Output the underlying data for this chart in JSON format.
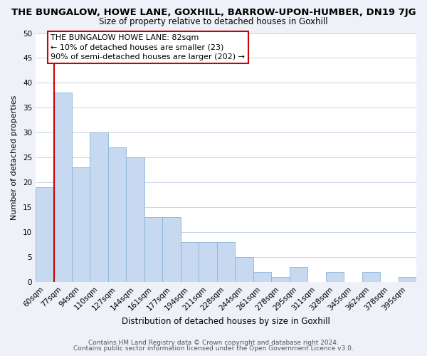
{
  "title": "THE BUNGALOW, HOWE LANE, GOXHILL, BARROW-UPON-HUMBER, DN19 7JG",
  "subtitle": "Size of property relative to detached houses in Goxhill",
  "xlabel": "Distribution of detached houses by size in Goxhill",
  "ylabel": "Number of detached properties",
  "bin_labels": [
    "60sqm",
    "77sqm",
    "94sqm",
    "110sqm",
    "127sqm",
    "144sqm",
    "161sqm",
    "177sqm",
    "194sqm",
    "211sqm",
    "228sqm",
    "244sqm",
    "261sqm",
    "278sqm",
    "295sqm",
    "311sqm",
    "328sqm",
    "345sqm",
    "362sqm",
    "378sqm",
    "395sqm"
  ],
  "bar_heights": [
    19,
    38,
    23,
    30,
    27,
    25,
    13,
    13,
    8,
    8,
    8,
    5,
    2,
    1,
    3,
    0,
    2,
    0,
    2,
    0,
    1
  ],
  "bar_color": "#c6d9f0",
  "bar_edge_color": "#8ab4d4",
  "vline_x": 1,
  "vline_color": "#cc0000",
  "ylim": [
    0,
    50
  ],
  "yticks": [
    0,
    5,
    10,
    15,
    20,
    25,
    30,
    35,
    40,
    45,
    50
  ],
  "annotation_lines": [
    "THE BUNGALOW HOWE LANE: 82sqm",
    "← 10% of detached houses are smaller (23)",
    "90% of semi-detached houses are larger (202) →"
  ],
  "footer_line1": "Contains HM Land Registry data © Crown copyright and database right 2024.",
  "footer_line2": "Contains public sector information licensed under the Open Government Licence v3.0.",
  "background_color": "#eef2f8",
  "plot_bg_color": "#ffffff",
  "grid_color": "#c8d4e8",
  "title_fontsize": 9.5,
  "subtitle_fontsize": 8.5,
  "xlabel_fontsize": 8.5,
  "ylabel_fontsize": 8.0,
  "tick_fontsize": 7.5,
  "footer_fontsize": 6.5,
  "ann_fontsize": 8.0
}
